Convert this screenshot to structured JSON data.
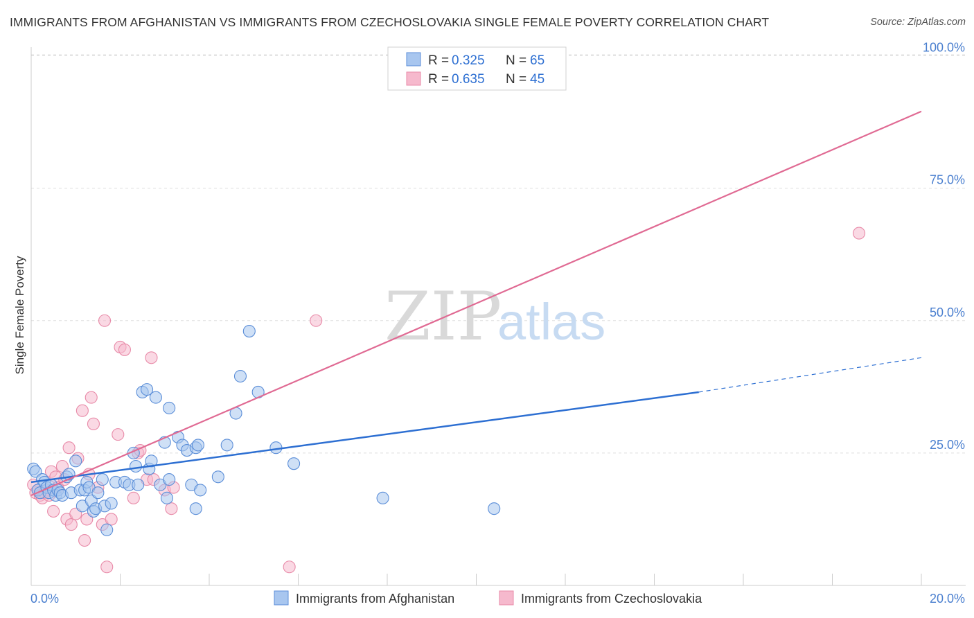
{
  "header": {
    "title": "IMMIGRANTS FROM AFGHANISTAN VS IMMIGRANTS FROM CZECHOSLOVAKIA SINGLE FEMALE POVERTY CORRELATION CHART",
    "source": "Source: ZipAtlas.com"
  },
  "watermark": {
    "part1": "ZIP",
    "part2": "atlas"
  },
  "legend": {
    "r_label": "R =",
    "n_label": "N =",
    "rows": [
      {
        "r": "0.325",
        "n": "65"
      },
      {
        "r": "0.635",
        "n": "45"
      }
    ]
  },
  "colors": {
    "blue_fill": "#a8c6ef",
    "blue_stroke": "#5b8ed8",
    "blue_line": "#2d6fd2",
    "pink_fill": "#f6b9cd",
    "pink_stroke": "#e88aa8",
    "pink_line": "#e06a93",
    "value_text": "#2d6fd2",
    "grid": "#dddddd"
  },
  "chart_data": {
    "type": "scatter",
    "title": "IMMIGRANTS FROM AFGHANISTAN VS IMMIGRANTS FROM CZECHOSLOVAKIA SINGLE FEMALE POVERTY CORRELATION CHART",
    "xlabel": "",
    "ylabel": "Single Female Poverty",
    "xlim": [
      0,
      20
    ],
    "ylim": [
      0,
      102
    ],
    "x_tick_labels": [
      "0.0%",
      "20.0%"
    ],
    "y_ticks": [
      {
        "value": 25,
        "label": "25.0%"
      },
      {
        "value": 50,
        "label": "50.0%"
      },
      {
        "value": 75,
        "label": "75.0%"
      },
      {
        "value": 100,
        "label": "100.0%"
      }
    ],
    "grid": true,
    "legend_position": "top-center",
    "series": [
      {
        "name": "Immigrants from Afghanistan",
        "r": 0.325,
        "n": 65,
        "points": [
          [
            0.05,
            22.0
          ],
          [
            0.1,
            21.5
          ],
          [
            0.15,
            18.0
          ],
          [
            0.2,
            17.5
          ],
          [
            0.25,
            20.0
          ],
          [
            0.3,
            19.5
          ],
          [
            0.35,
            18.5
          ],
          [
            0.4,
            17.5
          ],
          [
            0.45,
            19.0
          ],
          [
            0.5,
            18.0
          ],
          [
            0.55,
            17.0
          ],
          [
            0.6,
            18.0
          ],
          [
            0.65,
            17.5
          ],
          [
            0.7,
            17.0
          ],
          [
            0.8,
            20.5
          ],
          [
            0.85,
            21.0
          ],
          [
            0.9,
            17.5
          ],
          [
            1.0,
            23.5
          ],
          [
            1.1,
            18.0
          ],
          [
            1.15,
            15.0
          ],
          [
            1.2,
            18.0
          ],
          [
            1.25,
            19.5
          ],
          [
            1.3,
            18.5
          ],
          [
            1.35,
            16.0
          ],
          [
            1.4,
            14.0
          ],
          [
            1.45,
            14.5
          ],
          [
            1.5,
            17.5
          ],
          [
            1.6,
            20.0
          ],
          [
            1.65,
            15.0
          ],
          [
            1.7,
            10.5
          ],
          [
            1.8,
            15.5
          ],
          [
            1.9,
            19.5
          ],
          [
            2.1,
            19.5
          ],
          [
            2.2,
            19.0
          ],
          [
            2.3,
            25.0
          ],
          [
            2.35,
            22.5
          ],
          [
            2.4,
            19.0
          ],
          [
            2.5,
            36.5
          ],
          [
            2.6,
            37.0
          ],
          [
            2.65,
            22.0
          ],
          [
            2.7,
            23.5
          ],
          [
            2.8,
            35.5
          ],
          [
            2.9,
            19.0
          ],
          [
            3.0,
            27.0
          ],
          [
            3.05,
            16.5
          ],
          [
            3.1,
            20.0
          ],
          [
            3.1,
            33.5
          ],
          [
            3.3,
            28.0
          ],
          [
            3.4,
            26.5
          ],
          [
            3.5,
            25.5
          ],
          [
            3.6,
            19.0
          ],
          [
            3.7,
            14.5
          ],
          [
            3.7,
            26.0
          ],
          [
            3.75,
            26.5
          ],
          [
            3.8,
            18.0
          ],
          [
            4.2,
            20.5
          ],
          [
            4.4,
            26.5
          ],
          [
            4.6,
            32.5
          ],
          [
            4.7,
            39.5
          ],
          [
            4.9,
            48.0
          ],
          [
            5.1,
            36.5
          ],
          [
            5.5,
            26.0
          ],
          [
            5.9,
            23.0
          ],
          [
            7.9,
            16.5
          ],
          [
            10.4,
            14.5
          ]
        ],
        "trend": {
          "x0": 0.0,
          "y0": 19.5,
          "x1": 15.0,
          "y1": 36.5,
          "dash_to_x": 20.0,
          "dash_to_y": 43.0
        }
      },
      {
        "name": "Immigrants from Czechoslovakia",
        "r": 0.635,
        "n": 45,
        "points": [
          [
            0.05,
            19.0
          ],
          [
            0.1,
            17.5
          ],
          [
            0.15,
            18.0
          ],
          [
            0.2,
            17.0
          ],
          [
            0.25,
            16.5
          ],
          [
            0.3,
            17.5
          ],
          [
            0.35,
            18.0
          ],
          [
            0.4,
            17.0
          ],
          [
            0.45,
            21.5
          ],
          [
            0.5,
            14.0
          ],
          [
            0.55,
            20.5
          ],
          [
            0.6,
            18.5
          ],
          [
            0.7,
            22.5
          ],
          [
            0.75,
            20.0
          ],
          [
            0.8,
            12.5
          ],
          [
            0.85,
            26.0
          ],
          [
            0.9,
            11.5
          ],
          [
            1.0,
            13.5
          ],
          [
            1.05,
            24.0
          ],
          [
            1.15,
            33.0
          ],
          [
            1.2,
            8.5
          ],
          [
            1.25,
            12.5
          ],
          [
            1.3,
            21.0
          ],
          [
            1.35,
            35.5
          ],
          [
            1.4,
            30.5
          ],
          [
            1.5,
            18.5
          ],
          [
            1.6,
            11.5
          ],
          [
            1.65,
            50.0
          ],
          [
            1.7,
            3.5
          ],
          [
            1.8,
            12.5
          ],
          [
            1.95,
            28.5
          ],
          [
            2.0,
            45.0
          ],
          [
            2.1,
            44.5
          ],
          [
            2.3,
            16.5
          ],
          [
            2.4,
            25.0
          ],
          [
            2.45,
            25.5
          ],
          [
            2.6,
            20.0
          ],
          [
            2.7,
            43.0
          ],
          [
            2.75,
            20.0
          ],
          [
            3.0,
            18.0
          ],
          [
            3.15,
            14.5
          ],
          [
            3.2,
            18.5
          ],
          [
            5.8,
            3.5
          ],
          [
            6.4,
            50.0
          ],
          [
            18.6,
            66.5
          ]
        ],
        "trend": {
          "x0": 0.0,
          "y0": 17.0,
          "x1": 20.0,
          "y1": 89.5
        }
      }
    ]
  }
}
